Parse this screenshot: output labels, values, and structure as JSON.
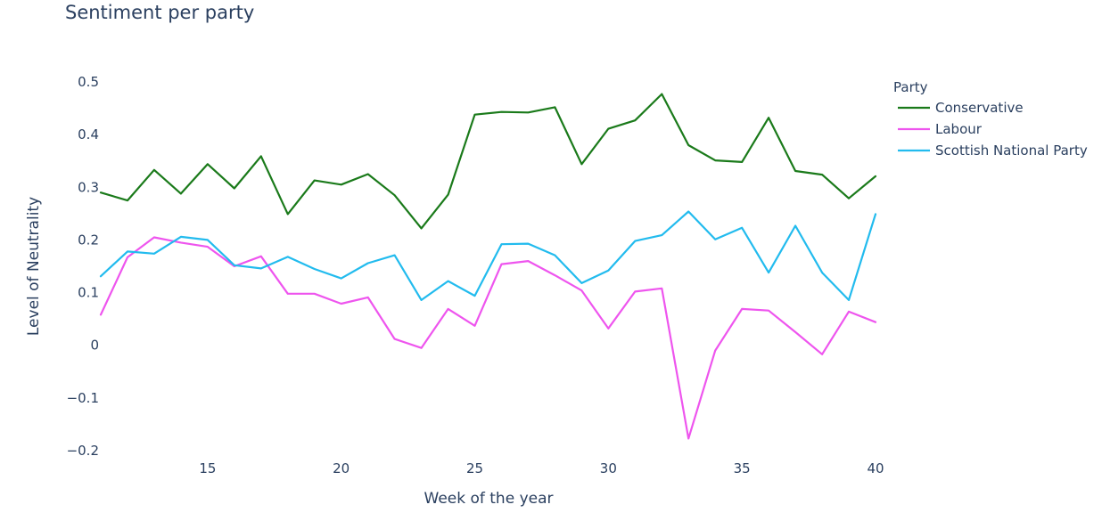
{
  "chart_data": {
    "type": "line",
    "title": "Sentiment per party",
    "xlabel": "Week of the year",
    "ylabel": "Level of Neutrality",
    "xlim": [
      11,
      40
    ],
    "ylim": [
      -0.2,
      0.5
    ],
    "x_ticks": [
      15,
      20,
      25,
      30,
      35,
      40
    ],
    "x_tick_labels": [
      "15",
      "20",
      "25",
      "30",
      "35",
      "40"
    ],
    "y_ticks": [
      -0.2,
      -0.1,
      0,
      0.1,
      0.2,
      0.3,
      0.4,
      0.5
    ],
    "y_tick_labels": [
      "−0.2",
      "−0.1",
      "0",
      "0.1",
      "0.2",
      "0.3",
      "0.4",
      "0.5"
    ],
    "grid": false,
    "legend": {
      "title": "Party",
      "position": "top-right"
    },
    "x": [
      11,
      12,
      13,
      14,
      15,
      16,
      17,
      18,
      19,
      20,
      21,
      22,
      23,
      24,
      25,
      26,
      27,
      28,
      29,
      30,
      31,
      32,
      33,
      34,
      35,
      36,
      37,
      38,
      39,
      40
    ],
    "series": [
      {
        "name": "Conservative",
        "color": "#1a7a1a",
        "values": [
          0.29,
          0.275,
          0.333,
          0.288,
          0.344,
          0.298,
          0.359,
          0.249,
          0.313,
          0.305,
          0.325,
          0.285,
          0.222,
          0.286,
          0.438,
          0.443,
          0.442,
          0.452,
          0.344,
          0.411,
          0.427,
          0.477,
          0.38,
          0.351,
          0.348,
          0.432,
          0.331,
          0.324,
          0.279,
          0.321
        ]
      },
      {
        "name": "Labour",
        "color": "#ee55ee",
        "values": [
          0.058,
          0.167,
          0.205,
          0.195,
          0.187,
          0.15,
          0.169,
          0.098,
          0.098,
          0.079,
          0.091,
          0.012,
          -0.005,
          0.069,
          0.037,
          0.154,
          0.16,
          0.133,
          0.104,
          0.032,
          0.102,
          0.108,
          -0.177,
          -0.01,
          0.069,
          0.066,
          0.025,
          -0.017,
          0.064,
          0.044
        ]
      },
      {
        "name": "Scottish National Party",
        "color": "#22bbee",
        "values": [
          0.131,
          0.178,
          0.174,
          0.206,
          0.2,
          0.152,
          0.146,
          0.168,
          0.145,
          0.127,
          0.156,
          0.171,
          0.086,
          0.122,
          0.094,
          0.192,
          0.193,
          0.171,
          0.118,
          0.142,
          0.198,
          0.209,
          0.254,
          0.201,
          0.223,
          0.138,
          0.227,
          0.138,
          0.086,
          0.249
        ]
      }
    ]
  }
}
